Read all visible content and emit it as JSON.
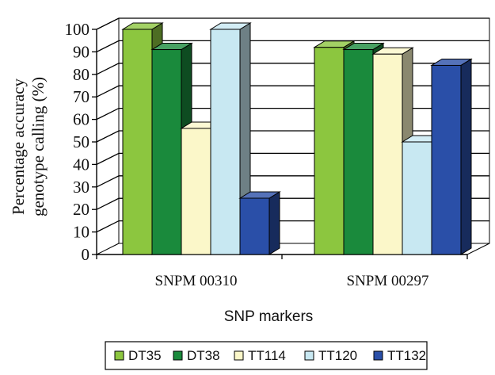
{
  "chart_data": {
    "type": "bar",
    "categories": [
      "SNPM 00310",
      "SNPM 00297"
    ],
    "series": [
      {
        "name": "DT35",
        "values": [
          100,
          92
        ]
      },
      {
        "name": "DT38",
        "values": [
          91,
          91
        ]
      },
      {
        "name": "TT114",
        "values": [
          56,
          89
        ]
      },
      {
        "name": "TT120",
        "values": [
          100,
          50
        ]
      },
      {
        "name": "TT132",
        "values": [
          25,
          84
        ]
      }
    ],
    "title": "",
    "xlabel": "SNP markers",
    "ylabel": [
      "Percentage accuracy",
      "genotype calling (%)"
    ],
    "ylim": [
      0,
      100
    ],
    "yticks": [
      0,
      10,
      20,
      30,
      40,
      50,
      60,
      70,
      80,
      90,
      100
    ],
    "grid": true,
    "legend_position": "bottom",
    "colors": {
      "DT35": "#8cc63f",
      "DT38": "#1a8a3c",
      "TT114": "#fbf7c9",
      "TT120": "#c8e8f2",
      "TT132": "#2a4fa8"
    }
  }
}
